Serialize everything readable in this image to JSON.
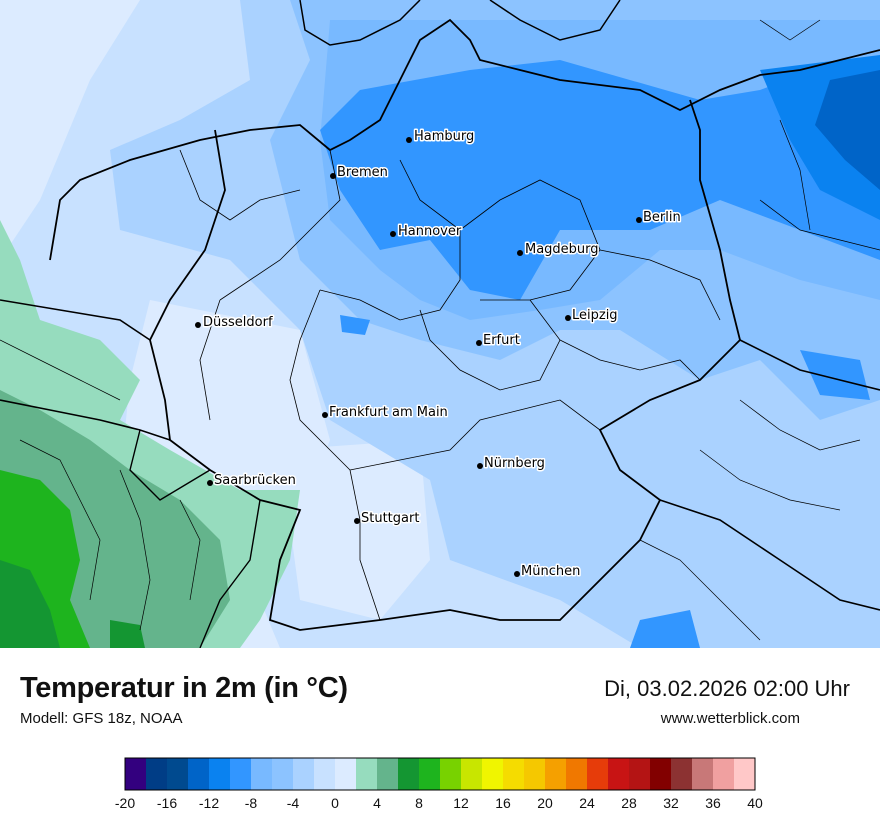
{
  "header": {
    "title": "Temperatur in 2m (in °C)",
    "model": "Modell: GFS 18z, NOAA",
    "datetime": "Di, 03.02.2026 02:00 Uhr",
    "website": "www.wetterblick.com"
  },
  "cities": [
    {
      "id": "hamburg",
      "name": "Hamburg"
    },
    {
      "id": "bremen",
      "name": "Bremen"
    },
    {
      "id": "berlin",
      "name": "Berlin"
    },
    {
      "id": "hannover",
      "name": "Hannover"
    },
    {
      "id": "magdeburg",
      "name": "Magdeburg"
    },
    {
      "id": "leipzig",
      "name": "Leipzig"
    },
    {
      "id": "duesseldorf",
      "name": "Düsseldorf"
    },
    {
      "id": "erfurt",
      "name": "Erfurt"
    },
    {
      "id": "frankfurt",
      "name": "Frankfurt am Main"
    },
    {
      "id": "nuernberg",
      "name": "Nürnberg"
    },
    {
      "id": "saarbruecken",
      "name": "Saarbrücken"
    },
    {
      "id": "stuttgart",
      "name": "Stuttgart"
    },
    {
      "id": "muenchen",
      "name": "München"
    }
  ],
  "legend": {
    "colors": [
      "#33007f",
      "#003d86",
      "#004a8f",
      "#0064c8",
      "#0a82f0",
      "#3296ff",
      "#78b9ff",
      "#8cc3ff",
      "#aad2ff",
      "#c8e1ff",
      "#dcebff",
      "#96dcbe",
      "#64b48c",
      "#149632",
      "#1eb41e",
      "#78d200",
      "#c8e600",
      "#f0f500",
      "#f5dc00",
      "#f5c800",
      "#f5a000",
      "#f07800",
      "#e63c0a",
      "#c81414",
      "#b41414",
      "#820000",
      "#8c3232",
      "#c87878",
      "#f0a0a0",
      "#ffc8c8"
    ],
    "ticks": [
      "-20",
      "-16",
      "-12",
      "-8",
      "-4",
      "0",
      "4",
      "8",
      "12",
      "16",
      "20",
      "24",
      "28",
      "32",
      "36",
      "40"
    ]
  }
}
